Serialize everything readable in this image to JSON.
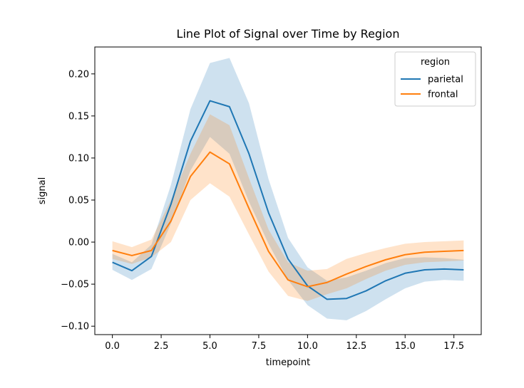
{
  "chart_data": {
    "type": "line",
    "title": "Line Plot of Signal over Time by Region",
    "xlabel": "timepoint",
    "ylabel": "signal",
    "xlim": [
      -0.9,
      18.9
    ],
    "ylim": [
      -0.11,
      0.232
    ],
    "xticks": [
      0.0,
      2.5,
      5.0,
      7.5,
      10.0,
      12.5,
      15.0,
      17.5
    ],
    "xtick_labels": [
      "0.0",
      "2.5",
      "5.0",
      "7.5",
      "10.0",
      "12.5",
      "15.0",
      "17.5"
    ],
    "yticks": [
      -0.1,
      -0.05,
      0.0,
      0.05,
      0.1,
      0.15,
      0.2
    ],
    "ytick_labels": [
      "−0.10",
      "−0.05",
      "0.00",
      "0.05",
      "0.10",
      "0.15",
      "0.20"
    ],
    "grid": false,
    "legend": {
      "title": "region",
      "placement": "top-right"
    },
    "x": [
      0,
      1,
      2,
      3,
      4,
      5,
      6,
      7,
      8,
      9,
      10,
      11,
      12,
      13,
      14,
      15,
      16,
      17,
      18
    ],
    "series": [
      {
        "name": "parietal",
        "color": "#1f77b4",
        "values": [
          -0.024,
          -0.034,
          -0.017,
          0.045,
          0.12,
          0.168,
          0.161,
          0.105,
          0.035,
          -0.02,
          -0.052,
          -0.068,
          -0.067,
          -0.058,
          -0.046,
          -0.037,
          -0.033,
          -0.032,
          -0.033
        ],
        "ci_lower": [
          -0.033,
          -0.045,
          -0.032,
          0.022,
          0.085,
          0.125,
          0.105,
          0.048,
          -0.002,
          -0.045,
          -0.075,
          -0.091,
          -0.093,
          -0.082,
          -0.068,
          -0.055,
          -0.047,
          -0.045,
          -0.046
        ],
        "ci_upper": [
          -0.014,
          -0.024,
          -0.003,
          0.068,
          0.158,
          0.213,
          0.219,
          0.165,
          0.075,
          0.005,
          -0.03,
          -0.046,
          -0.042,
          -0.034,
          -0.025,
          -0.019,
          -0.018,
          -0.019,
          -0.021
        ]
      },
      {
        "name": "frontal",
        "color": "#ff7f0e",
        "values": [
          -0.01,
          -0.016,
          -0.01,
          0.025,
          0.078,
          0.107,
          0.093,
          0.04,
          -0.011,
          -0.045,
          -0.053,
          -0.048,
          -0.038,
          -0.029,
          -0.021,
          -0.015,
          -0.012,
          -0.011,
          -0.01
        ],
        "ci_lower": [
          -0.02,
          -0.026,
          -0.018,
          0.0,
          0.05,
          0.07,
          0.054,
          0.009,
          -0.035,
          -0.064,
          -0.07,
          -0.062,
          -0.055,
          -0.044,
          -0.034,
          -0.027,
          -0.024,
          -0.023,
          -0.022
        ],
        "ci_upper": [
          0.001,
          -0.006,
          0.003,
          0.05,
          0.105,
          0.152,
          0.139,
          0.076,
          0.015,
          -0.024,
          -0.034,
          -0.032,
          -0.02,
          -0.013,
          -0.007,
          -0.002,
          0.0,
          0.001,
          0.002
        ]
      }
    ]
  }
}
